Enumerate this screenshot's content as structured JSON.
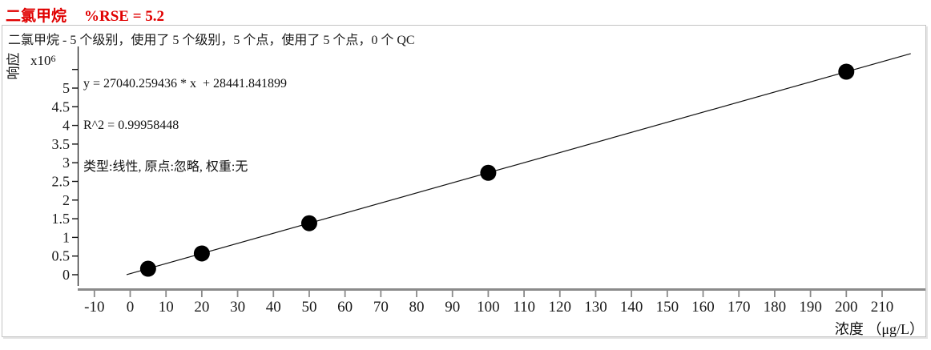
{
  "title": {
    "compound": "二氯甲烷",
    "rse_label": "%RSE = 5.2"
  },
  "subtitle": "二氯甲烷 - 5 个级别，使用了 5 个级别，5 个点，使用了 5 个点，0 个 QC",
  "equation": {
    "line1": "y = 27040.259436 * x  + 28441.841899",
    "line2": "R^2 = 0.99958448",
    "line3": "类型:线性, 原点:忽略, 权重:无"
  },
  "colors": {
    "title_red": "#e00000",
    "axis_gray": "#8a8a8a",
    "ink_black": "#111111",
    "panel_border": "#c3c3c3",
    "point_fill": "#000000"
  },
  "chart_data": {
    "type": "scatter",
    "title": "",
    "xlabel": "浓度 （μg/L）",
    "ylabel": "响应",
    "y_scale_label": {
      "base": "x10",
      "exp": "6"
    },
    "x_ticks": [
      -10,
      0,
      10,
      20,
      30,
      40,
      50,
      60,
      70,
      80,
      90,
      100,
      110,
      120,
      130,
      140,
      150,
      160,
      170,
      180,
      190,
      200,
      210
    ],
    "y_ticks": [
      0,
      0.5,
      1,
      1.5,
      2,
      2.5,
      3,
      3.5,
      4,
      4.5,
      5
    ],
    "xlim": [
      -14.5,
      222
    ],
    "ylim_millions": [
      0,
      5.5
    ],
    "grid": false,
    "points": {
      "x": [
        5,
        20,
        50,
        100,
        200
      ],
      "y_millions": [
        0.16,
        0.57,
        1.38,
        2.73,
        5.44
      ]
    },
    "fit": {
      "type_label": "线性",
      "slope": 27040.259436,
      "intercept": 28441.841899,
      "r_squared": 0.99958448,
      "line_x_range": [
        -1,
        218
      ]
    }
  }
}
